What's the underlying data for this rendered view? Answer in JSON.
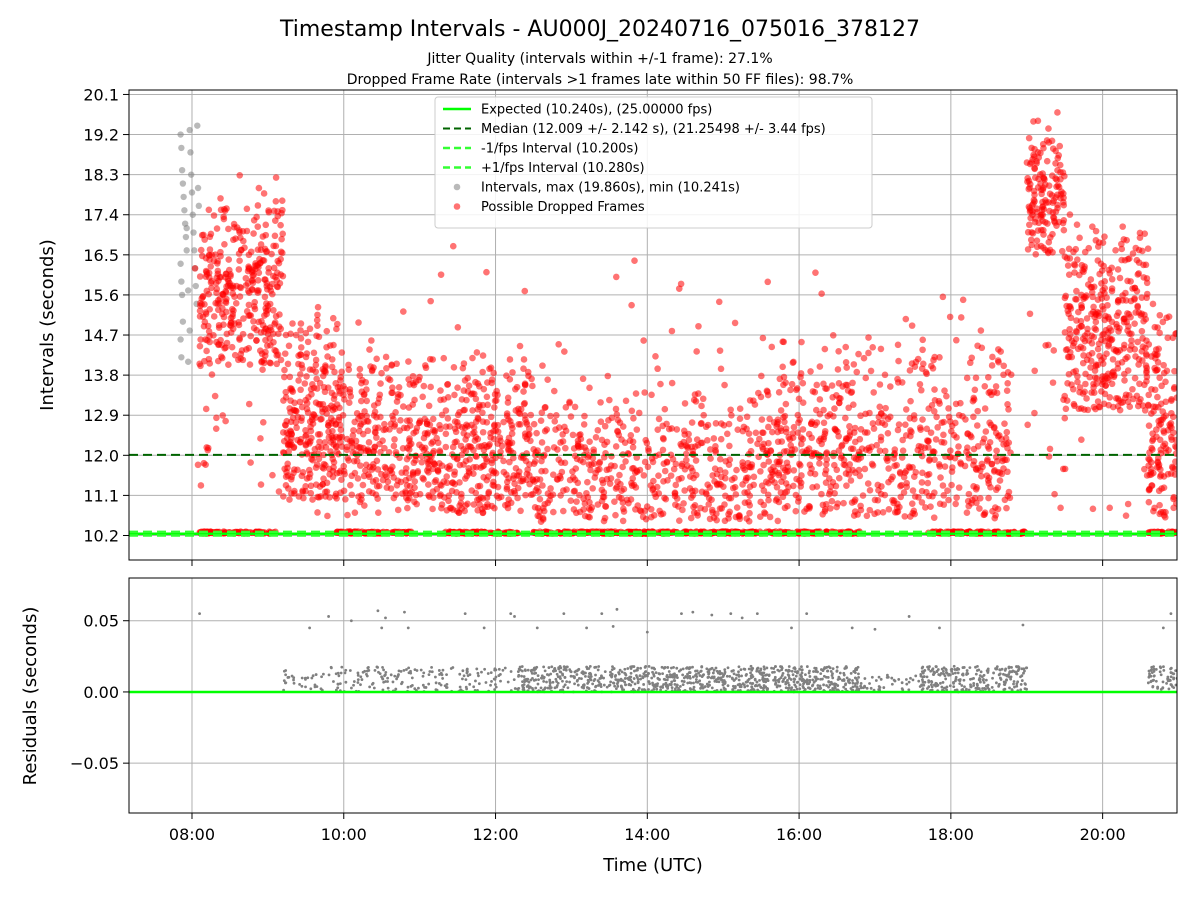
{
  "chart_data": {
    "type": "scatter",
    "title": "Timestamp Intervals - AU000J_20240716_075016_378127",
    "subtitle_1": "Jitter Quality (intervals within +/-1 frame): 27.1%",
    "subtitle_2": "Dropped Frame Rate (intervals >1 frames late within 50 FF files): 98.7%",
    "xlabel": "Time (UTC)",
    "x_ticks": [
      "08:00",
      "10:00",
      "12:00",
      "14:00",
      "16:00",
      "18:00",
      "20:00"
    ],
    "x_tick_hours": [
      8,
      10,
      12,
      14,
      16,
      18,
      20
    ],
    "xlim_hours": [
      7.17,
      20.98
    ],
    "upper": {
      "ylabel": "Intervals (seconds)",
      "ylim": [
        9.65,
        20.2
      ],
      "y_ticks": [
        "10.2",
        "11.1",
        "12.0",
        "12.9",
        "13.8",
        "14.7",
        "15.6",
        "16.5",
        "17.4",
        "18.3",
        "19.2",
        "20.1"
      ],
      "y_tick_values": [
        10.2,
        11.1,
        12.0,
        12.9,
        13.8,
        14.7,
        15.6,
        16.5,
        17.4,
        18.3,
        19.2,
        20.1
      ],
      "expected": 10.24,
      "median": 12.009,
      "minus_fps": 10.2,
      "plus_fps": 10.28,
      "legend": [
        "Expected (10.240s), (25.00000 fps)",
        "Median (12.009 +/- 2.142 s), (21.25498 +/- 3.44 fps)",
        "-1/fps Interval (10.200s)",
        "+1/fps Interval (10.280s)",
        "Intervals, max (19.860s), min (10.241s)",
        "Possible Dropped Frames"
      ],
      "interval_max": 19.86,
      "interval_min": 10.241,
      "gray_points": [
        [
          7.85,
          19.2
        ],
        [
          7.86,
          18.9
        ],
        [
          7.87,
          18.4
        ],
        [
          7.88,
          18.1
        ],
        [
          7.89,
          17.8
        ],
        [
          7.9,
          17.5
        ],
        [
          7.91,
          17.2
        ],
        [
          7.92,
          16.9
        ],
        [
          7.93,
          16.6
        ],
        [
          7.85,
          16.3
        ],
        [
          7.86,
          15.9
        ],
        [
          7.87,
          15.6
        ],
        [
          7.88,
          15.0
        ],
        [
          7.85,
          14.6
        ],
        [
          7.86,
          14.2
        ],
        [
          7.95,
          14.1
        ],
        [
          7.97,
          19.3
        ],
        [
          7.98,
          18.8
        ],
        [
          7.99,
          18.3
        ],
        [
          8.0,
          17.9
        ],
        [
          8.01,
          17.4
        ],
        [
          8.02,
          17.0
        ],
        [
          8.03,
          16.6
        ],
        [
          8.04,
          16.2
        ],
        [
          8.05,
          15.8
        ],
        [
          8.06,
          15.4
        ],
        [
          8.07,
          19.4
        ],
        [
          8.08,
          18.0
        ],
        [
          8.09,
          17.6
        ],
        [
          7.93,
          17.1
        ],
        [
          7.95,
          15.7
        ],
        [
          7.97,
          14.8
        ]
      ],
      "dense_segments": [
        [
          8.1,
          9.1
        ],
        [
          9.9,
          10.9
        ],
        [
          11.3,
          12.3
        ],
        [
          12.5,
          16.8
        ],
        [
          17.7,
          19.0
        ],
        [
          20.6,
          20.98
        ]
      ],
      "red_clusters": [
        {
          "x": [
            8.1,
            9.2
          ],
          "y": [
            14.0,
            18.4
          ],
          "n": 340
        },
        {
          "x": [
            9.2,
            10.0
          ],
          "y": [
            11.0,
            15.5
          ],
          "n": 280
        },
        {
          "x": [
            10.0,
            12.5
          ],
          "y": [
            10.7,
            14.5
          ],
          "n": 600
        },
        {
          "x": [
            12.5,
            15.5
          ],
          "y": [
            10.5,
            13.8
          ],
          "n": 450
        },
        {
          "x": [
            15.5,
            18.8
          ],
          "y": [
            10.6,
            14.8
          ],
          "n": 620
        },
        {
          "x": [
            19.0,
            19.5
          ],
          "y": [
            16.5,
            19.8
          ],
          "n": 150
        },
        {
          "x": [
            19.5,
            20.6
          ],
          "y": [
            13.0,
            17.5
          ],
          "n": 350
        },
        {
          "x": [
            20.6,
            20.98
          ],
          "y": [
            10.6,
            15.8
          ],
          "n": 130
        },
        {
          "x": [
            8.0,
            20.98
          ],
          "y": [
            10.5,
            17.0
          ],
          "n": 260
        }
      ]
    },
    "lower": {
      "ylabel": "Residuals (seconds)",
      "ylim": [
        -0.085,
        0.08
      ],
      "y_ticks": [
        "0.05",
        "0.00",
        "−0.05"
      ],
      "y_tick_values": [
        0.05,
        0.0,
        -0.05
      ],
      "residual_bands": [
        {
          "x": [
            9.2,
            9.9
          ],
          "y": [
            0.0,
            0.018
          ],
          "n": 35
        },
        {
          "x": [
            9.9,
            12.3
          ],
          "y": [
            0.0,
            0.018
          ],
          "n": 180
        },
        {
          "x": [
            12.3,
            16.8
          ],
          "y": [
            0.0,
            0.018
          ],
          "n": 900
        },
        {
          "x": [
            16.8,
            17.6
          ],
          "y": [
            0.0,
            0.012
          ],
          "n": 40
        },
        {
          "x": [
            17.6,
            19.0
          ],
          "y": [
            0.0,
            0.018
          ],
          "n": 260
        },
        {
          "x": [
            20.6,
            20.98
          ],
          "y": [
            0.0,
            0.018
          ],
          "n": 60
        }
      ],
      "outliers": [
        [
          8.1,
          0.055
        ],
        [
          9.55,
          0.045
        ],
        [
          9.8,
          0.053
        ],
        [
          10.1,
          0.05
        ],
        [
          10.45,
          0.057
        ],
        [
          10.5,
          0.045
        ],
        [
          10.55,
          0.052
        ],
        [
          10.8,
          0.056
        ],
        [
          10.85,
          0.045
        ],
        [
          11.6,
          0.055
        ],
        [
          11.85,
          0.045
        ],
        [
          12.2,
          0.055
        ],
        [
          12.25,
          0.053
        ],
        [
          12.55,
          0.045
        ],
        [
          12.9,
          0.055
        ],
        [
          13.2,
          0.045
        ],
        [
          13.4,
          0.055
        ],
        [
          13.55,
          0.046
        ],
        [
          13.6,
          0.058
        ],
        [
          14.0,
          0.042
        ],
        [
          14.45,
          0.055
        ],
        [
          14.6,
          0.056
        ],
        [
          14.85,
          0.054
        ],
        [
          15.1,
          0.055
        ],
        [
          15.25,
          0.052
        ],
        [
          15.45,
          0.055
        ],
        [
          15.9,
          0.045
        ],
        [
          16.1,
          0.055
        ],
        [
          16.7,
          0.045
        ],
        [
          17.0,
          0.044
        ],
        [
          17.45,
          0.053
        ],
        [
          17.85,
          0.045
        ],
        [
          18.95,
          0.047
        ],
        [
          20.8,
          0.045
        ],
        [
          20.9,
          0.055
        ]
      ],
      "zero_line": 0.0
    },
    "colors": {
      "expected": "#00ff00",
      "median": "#006400",
      "fps_interval": "#33ff33",
      "gray_points": "#808080",
      "dropped": "#ff0000",
      "residuals": "#808080",
      "grid": "#b0b0b0"
    },
    "grid": true,
    "legend_position": "upper center"
  }
}
